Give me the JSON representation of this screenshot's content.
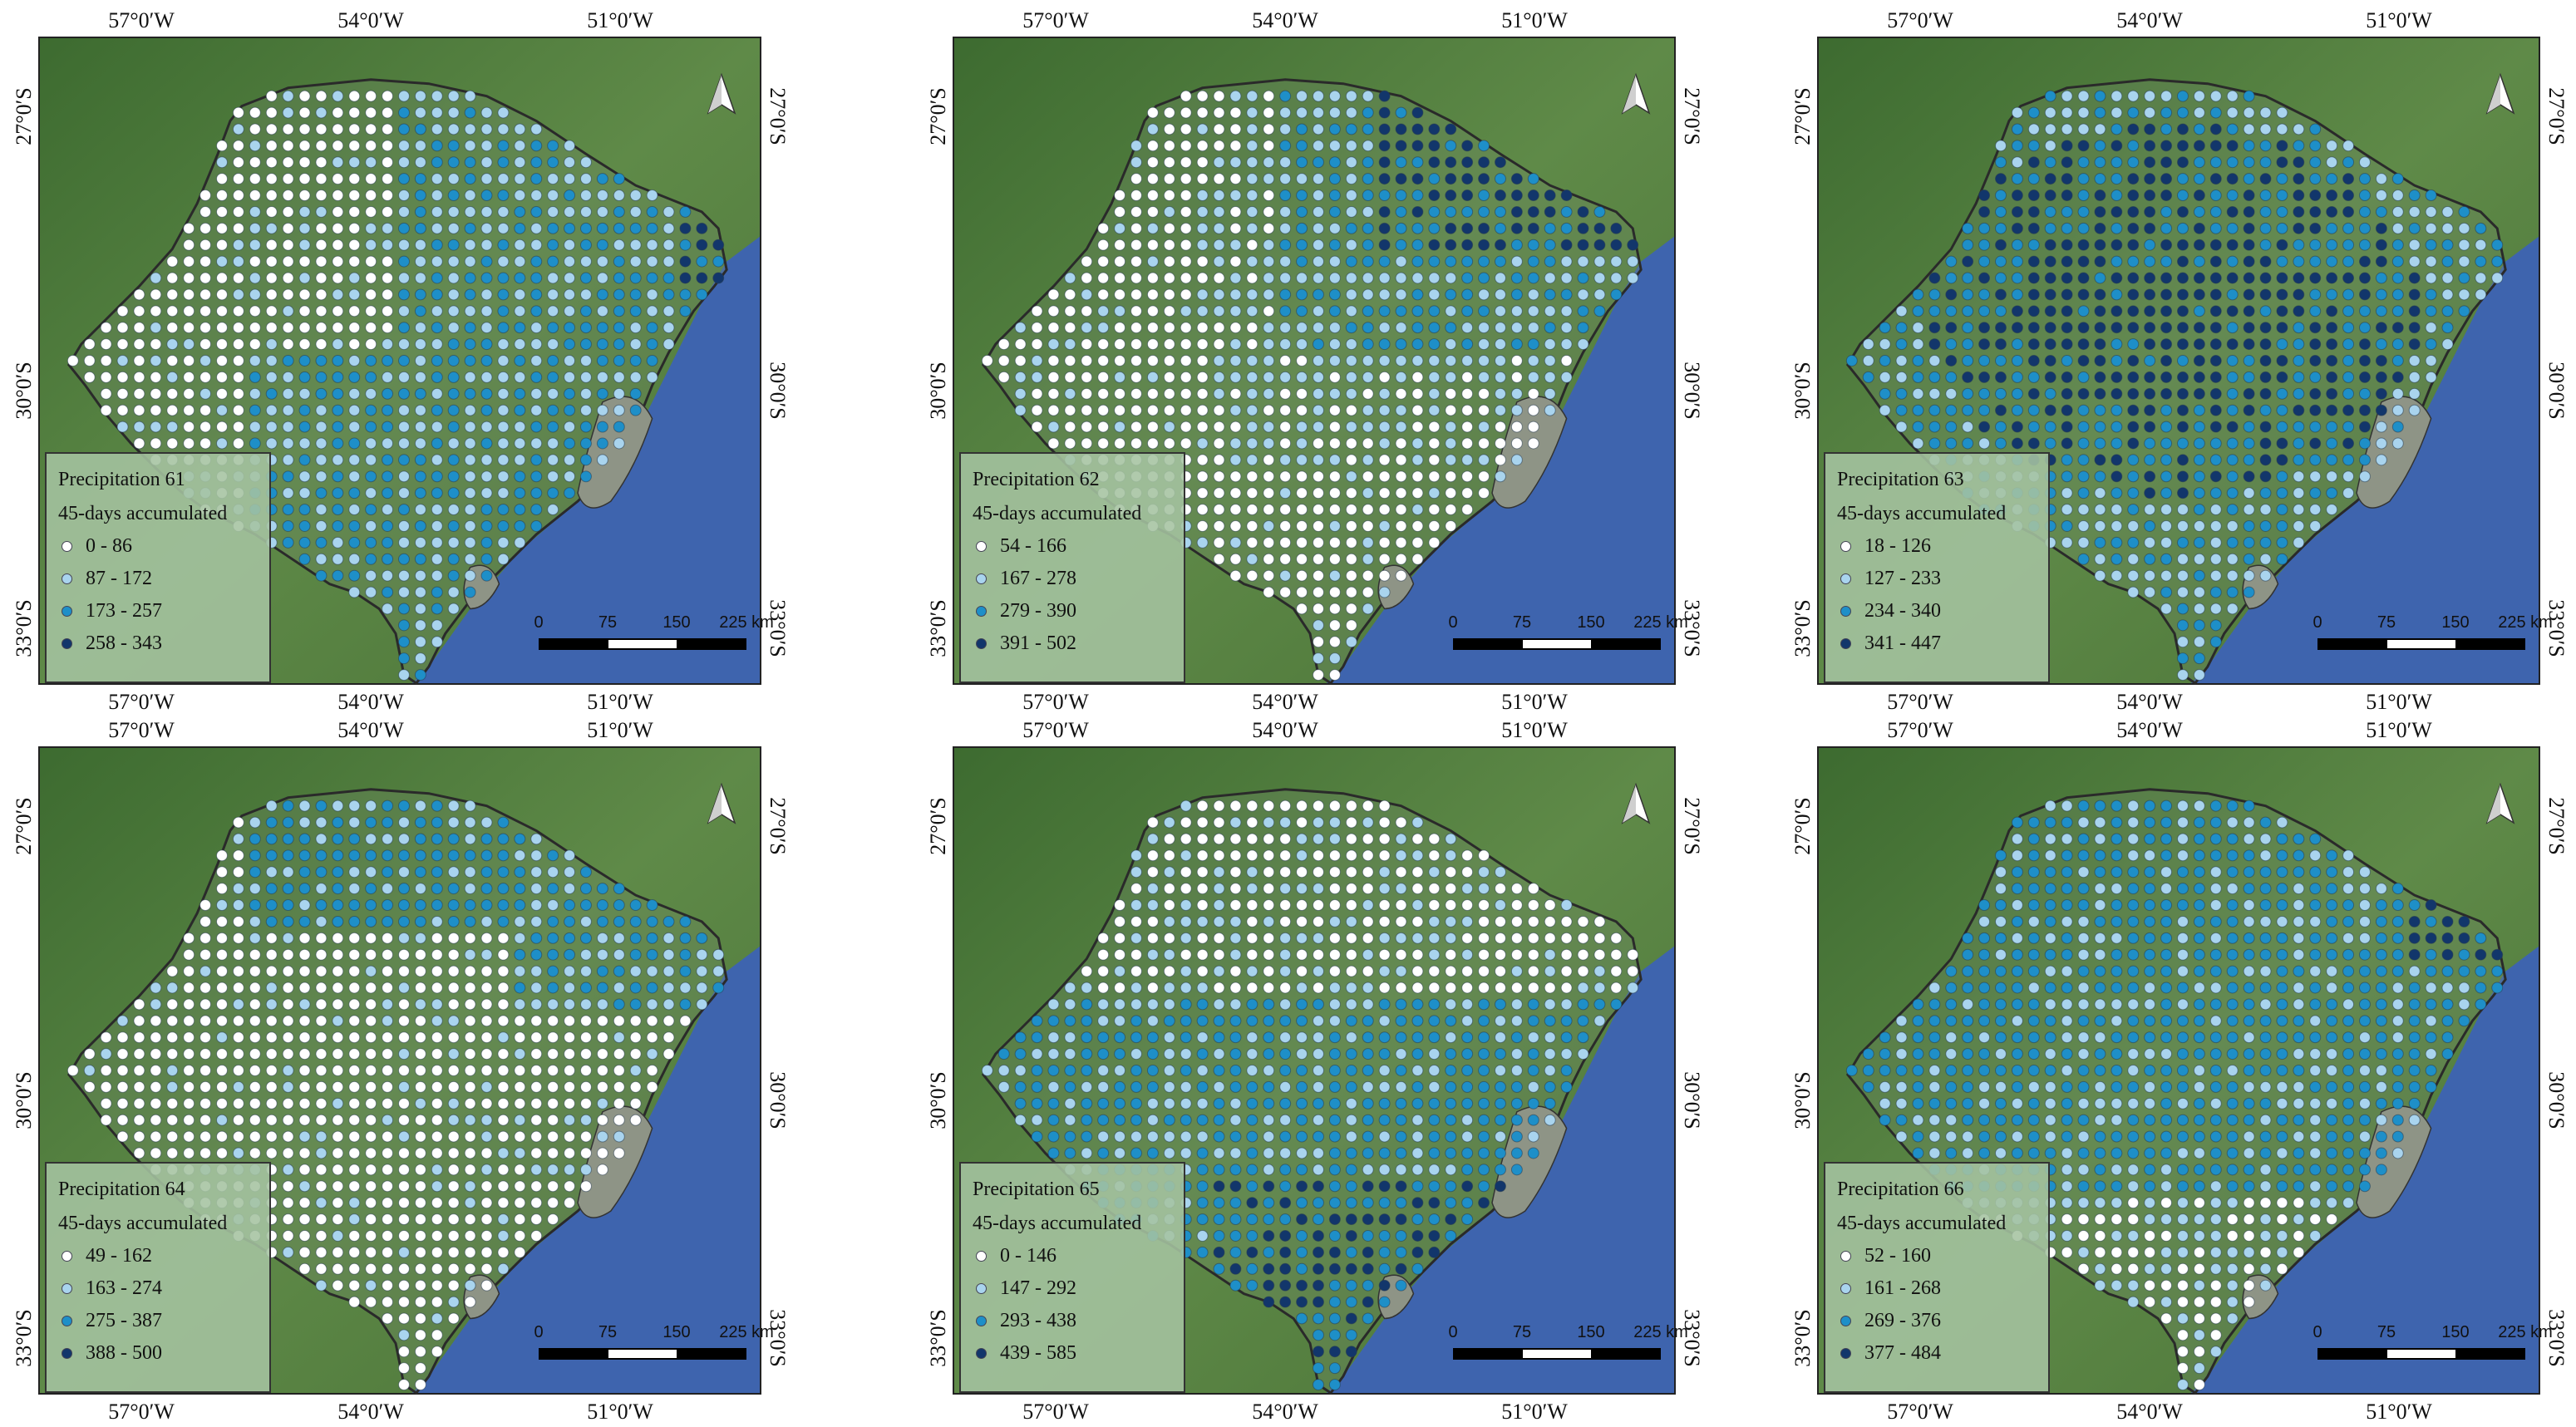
{
  "colors": {
    "class1": "#ffffff",
    "class2": "#a9d4ee",
    "class3": "#1e8fc8",
    "class4": "#12366b",
    "ocean": "#3e64ae",
    "land": "#4f7a3a",
    "lagoon": "#8e9486",
    "legend_bg": "#a6c3a0"
  },
  "axis_labels": {
    "lon": [
      "57°0′W",
      "54°0′W",
      "51°0′W"
    ],
    "lat": [
      "27°0′S",
      "30°0′S",
      "33°0′S"
    ]
  },
  "scale": {
    "labels": [
      "0",
      "75",
      "150",
      "225 km"
    ]
  },
  "legend_subtitle": "45-days accumulated",
  "north_arrow": "north-arrow-icon",
  "panels": [
    {
      "title": "Precipitation 61",
      "classes": [
        "0 - 86",
        "87 - 172",
        "173 - 257",
        "258 - 343"
      ]
    },
    {
      "title": "Precipitation 62",
      "classes": [
        "54 - 166",
        "167 - 278",
        "279 - 390",
        "391 - 502"
      ]
    },
    {
      "title": "Precipitation 63",
      "classes": [
        "18 - 126",
        "127 - 233",
        "234 - 340",
        "341 - 447"
      ]
    },
    {
      "title": "Precipitation 64",
      "classes": [
        "49 - 162",
        "163 - 274",
        "275 - 387",
        "388 - 500"
      ]
    },
    {
      "title": "Precipitation 65",
      "classes": [
        "0 - 146",
        "147 - 292",
        "293 - 438",
        "439 - 585"
      ]
    },
    {
      "title": "Precipitation 66",
      "classes": [
        "52 - 160",
        "161 - 268",
        "269 - 376",
        "377 - 484"
      ]
    }
  ]
}
